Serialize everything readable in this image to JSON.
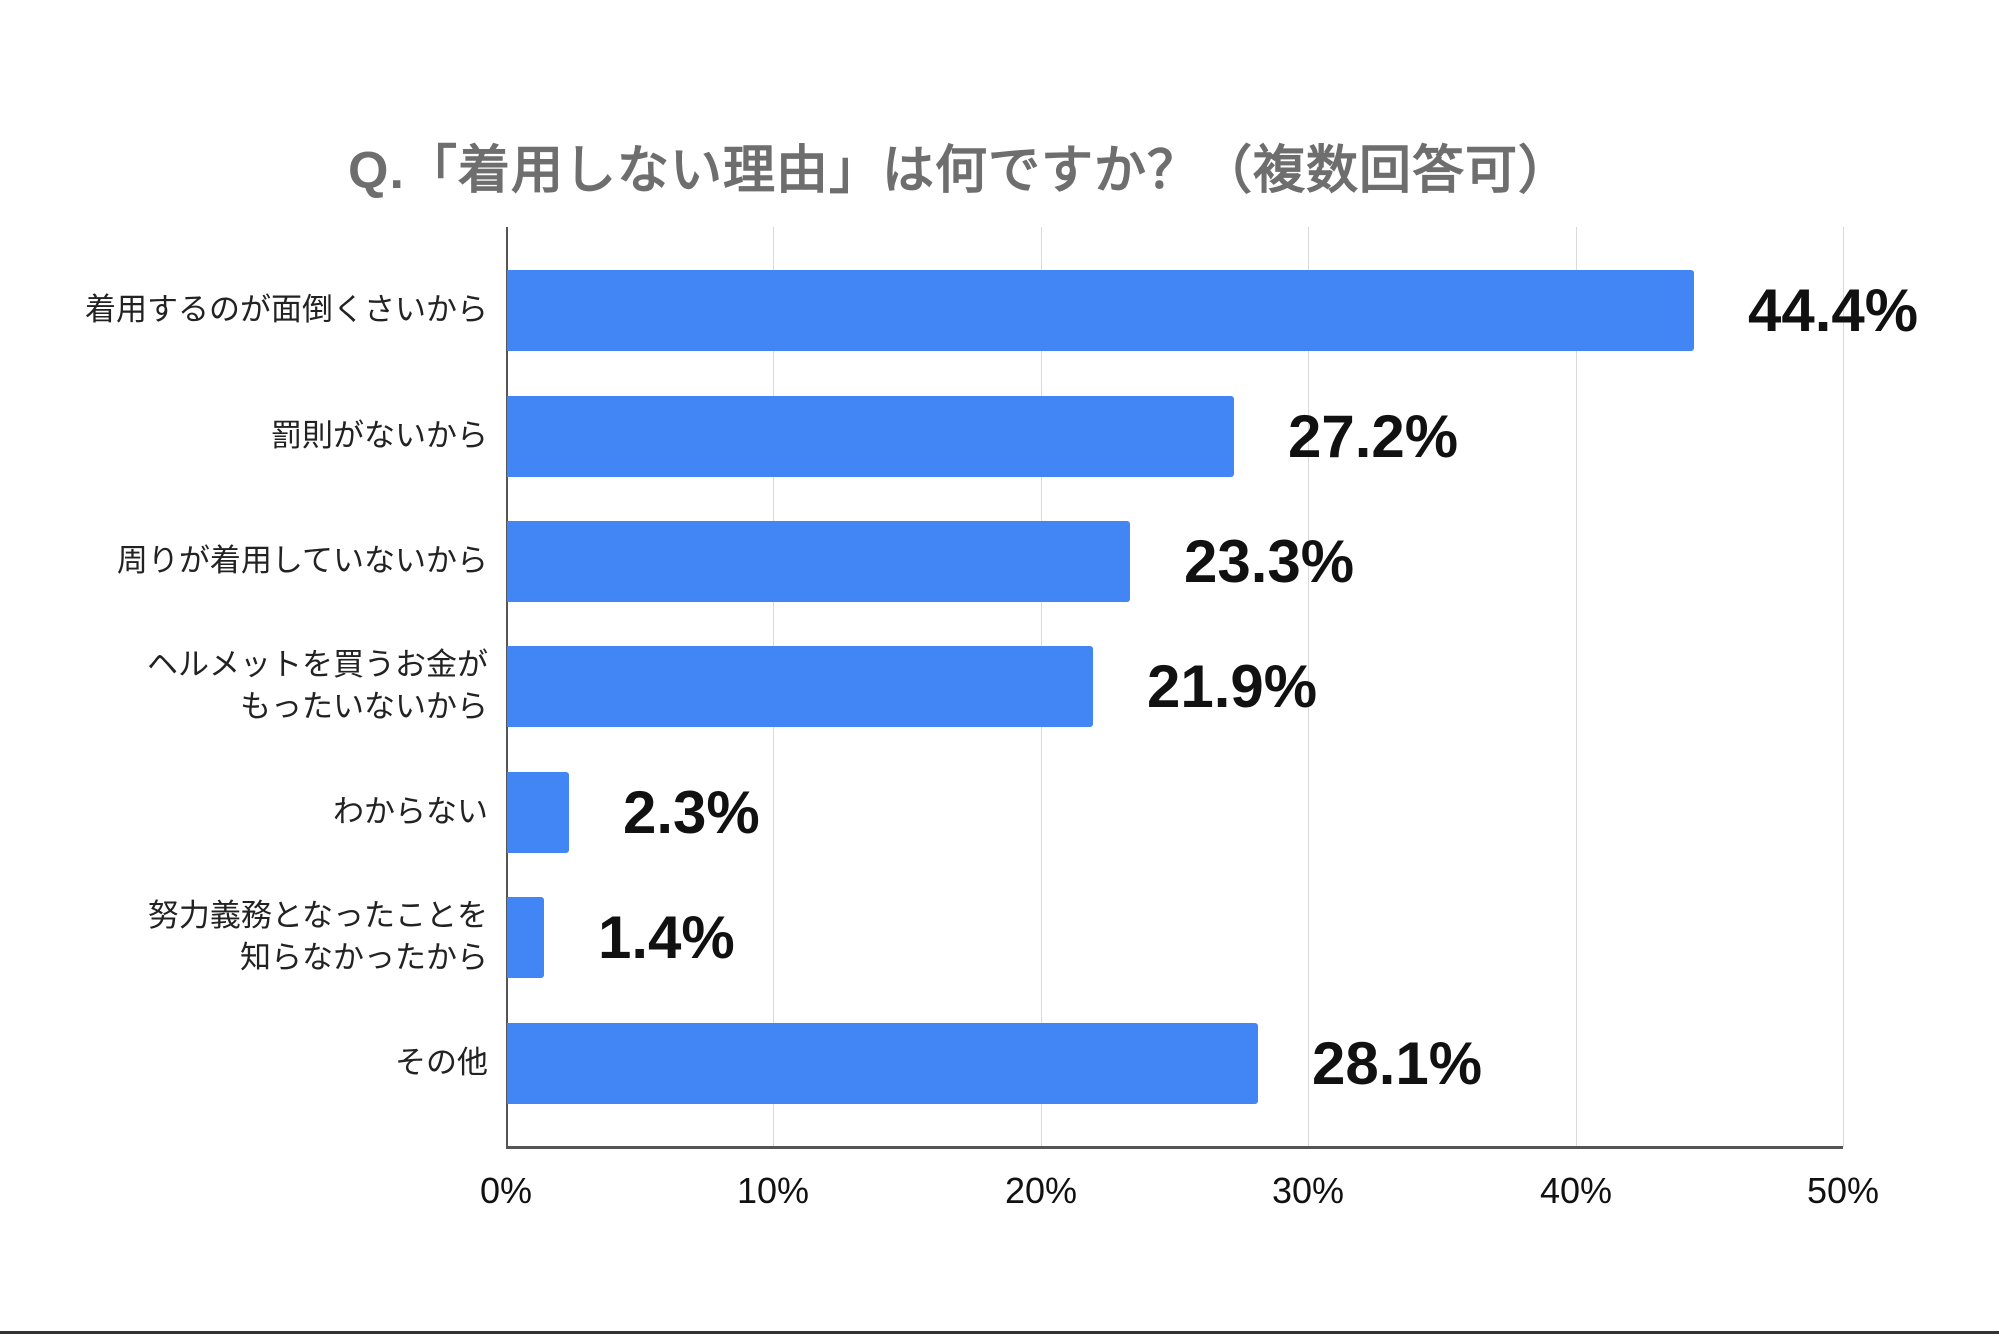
{
  "title": "Q.「着用しない理由」は何ですか？（複数回答可）",
  "colors": {
    "bar": "#4285f4",
    "title": "#6e6e6e",
    "grid": "#d9d9d9"
  },
  "axis": {
    "ticks": [
      "0%",
      "10%",
      "20%",
      "30%",
      "40%",
      "50%"
    ]
  },
  "items": [
    {
      "line1": "着用するのが面倒くさいから",
      "line2": "",
      "value_label": "44.4%"
    },
    {
      "line1": "罰則がないから",
      "line2": "",
      "value_label": "27.2%"
    },
    {
      "line1": "周りが着用していないから",
      "line2": "",
      "value_label": "23.3%"
    },
    {
      "line1": "ヘルメットを買うお金が",
      "line2": "もったいないから",
      "value_label": "21.9%"
    },
    {
      "line1": "わからない",
      "line2": "",
      "value_label": "2.3%"
    },
    {
      "line1": "努力義務となったことを",
      "line2": "知らなかったから",
      "value_label": "1.4%"
    },
    {
      "line1": "その他",
      "line2": "",
      "value_label": "28.1%"
    }
  ],
  "chart_data": {
    "type": "bar",
    "orientation": "horizontal",
    "title": "Q.「着用しない理由」は何ですか？（複数回答可）",
    "categories": [
      "着用するのが面倒くさいから",
      "罰則がないから",
      "周りが着用していないから",
      "ヘルメットを買うお金がもったいないから",
      "わからない",
      "努力義務となったことを知らなかったから",
      "その他"
    ],
    "values": [
      44.4,
      27.2,
      23.3,
      21.9,
      2.3,
      1.4,
      28.1
    ],
    "xlabel": "",
    "ylabel": "",
    "xlim": [
      0,
      50
    ],
    "x_ticks": [
      "0%",
      "10%",
      "20%",
      "30%",
      "40%",
      "50%"
    ],
    "grid": true,
    "legend": "none",
    "data_labels": [
      "44.4%",
      "27.2%",
      "23.3%",
      "21.9%",
      "2.3%",
      "1.4%",
      "28.1%"
    ]
  }
}
